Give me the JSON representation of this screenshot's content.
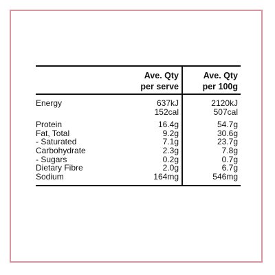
{
  "colors": {
    "frame_border": "#d9959e",
    "rule": "#111111",
    "background": "#ffffff"
  },
  "table": {
    "headers": {
      "serve_line1": "Ave. Qty",
      "serve_line2": "per serve",
      "per100_line1": "Ave. Qty",
      "per100_line2": "per 100g"
    },
    "rows": [
      {
        "label": "Energy",
        "per_serve": "637kJ",
        "per_100g": "2120kJ"
      },
      {
        "label": "",
        "per_serve": "152cal",
        "per_100g": "507cal"
      },
      {
        "label": "Protein",
        "per_serve": "16.4g",
        "per_100g": "54.7g"
      },
      {
        "label": "Fat, Total",
        "per_serve": "9.2g",
        "per_100g": "30.6g"
      },
      {
        "label": "- Saturated",
        "per_serve": "7.1g",
        "per_100g": "23.7g"
      },
      {
        "label": "Carbohydrate",
        "per_serve": "2.3g",
        "per_100g": "7.8g"
      },
      {
        "label": "- Sugars",
        "per_serve": "0.2g",
        "per_100g": "0.7g"
      },
      {
        "label": "Dietary Fibre",
        "per_serve": "2.0g",
        "per_100g": "6.7g"
      },
      {
        "label": "Sodium",
        "per_serve": "164mg",
        "per_100g": "546mg"
      }
    ]
  }
}
